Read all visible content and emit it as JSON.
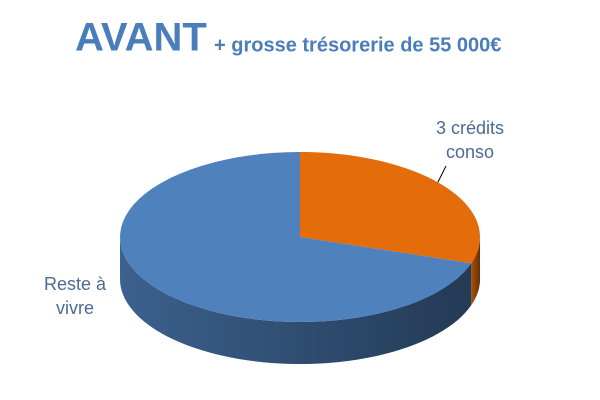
{
  "chart_data": {
    "type": "pie3d",
    "title": "AVANT",
    "subtitle": "+ grosse trésorerie de 55 000€",
    "categories": [
      "3 crédits conso",
      "Reste à vivre"
    ],
    "values": [
      30,
      70
    ],
    "colors": [
      "#e46c0a",
      "#4f81bd"
    ]
  }
}
